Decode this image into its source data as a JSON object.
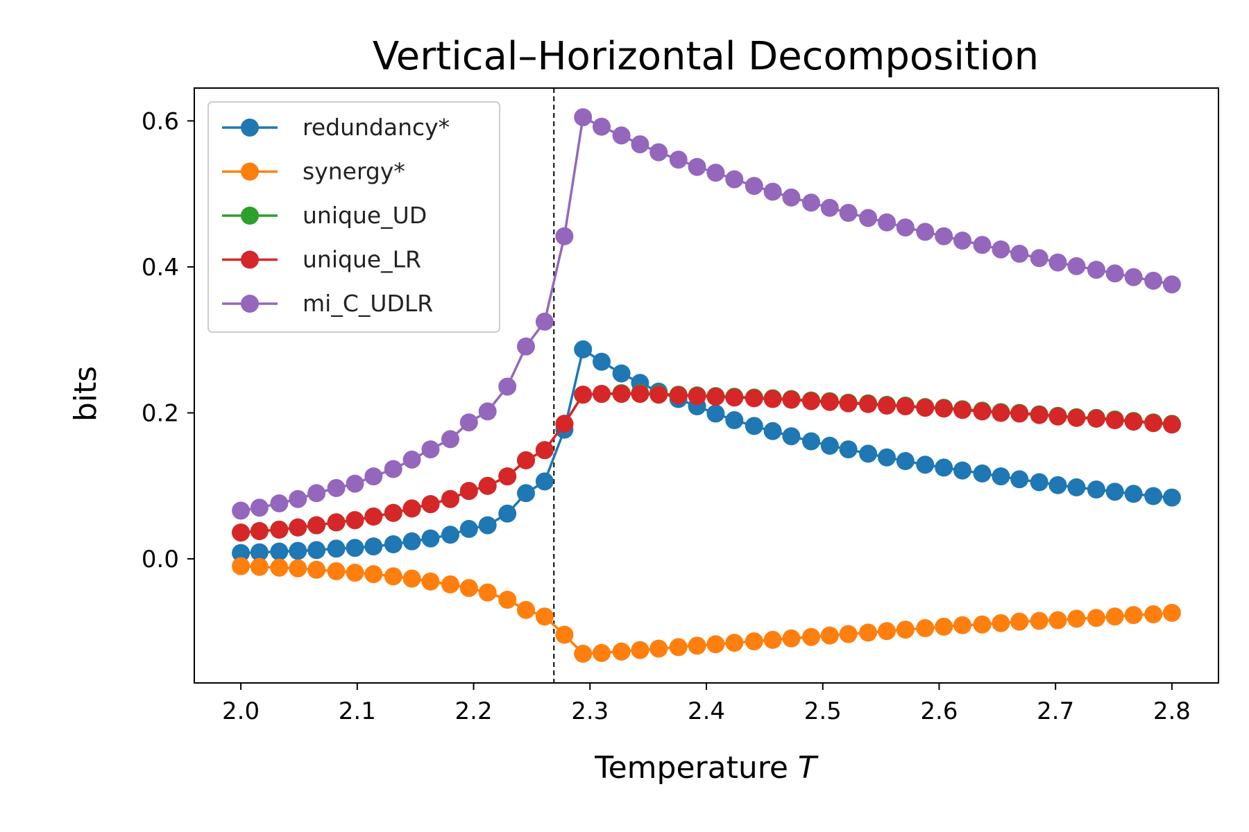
{
  "chart_data": {
    "type": "line",
    "title": "Vertical–Horizontal Decomposition",
    "xlabel_main": "Temperature ",
    "xlabel_var": "T",
    "ylabel": "bits",
    "xlim": [
      1.96,
      2.84
    ],
    "ylim": [
      -0.17,
      0.645
    ],
    "xticks": [
      2.0,
      2.1,
      2.2,
      2.3,
      2.4,
      2.5,
      2.6,
      2.7,
      2.8
    ],
    "xtick_labels": [
      "2.0",
      "2.1",
      "2.2",
      "2.3",
      "2.4",
      "2.5",
      "2.6",
      "2.7",
      "2.8"
    ],
    "yticks": [
      0.0,
      0.2,
      0.4,
      0.6
    ],
    "ytick_labels": [
      "0.0",
      "0.2",
      "0.4",
      "0.6"
    ],
    "critical_temperature": 2.269,
    "legend_position": "upper-left",
    "x": [
      2.0,
      2.016,
      2.033,
      2.049,
      2.065,
      2.082,
      2.098,
      2.114,
      2.131,
      2.147,
      2.163,
      2.18,
      2.196,
      2.212,
      2.229,
      2.245,
      2.261,
      2.278,
      2.294,
      2.31,
      2.327,
      2.343,
      2.359,
      2.376,
      2.392,
      2.408,
      2.424,
      2.441,
      2.457,
      2.473,
      2.49,
      2.506,
      2.522,
      2.539,
      2.555,
      2.571,
      2.588,
      2.604,
      2.62,
      2.637,
      2.653,
      2.669,
      2.686,
      2.702,
      2.718,
      2.735,
      2.751,
      2.767,
      2.784,
      2.8
    ],
    "series": [
      {
        "name": "redundancy*",
        "color": "#1f77b4",
        "values": [
          0.008,
          0.009,
          0.01,
          0.011,
          0.012,
          0.014,
          0.015,
          0.017,
          0.02,
          0.024,
          0.028,
          0.033,
          0.041,
          0.046,
          0.062,
          0.09,
          0.106,
          0.177,
          0.287,
          0.27,
          0.254,
          0.241,
          0.229,
          0.219,
          0.209,
          0.199,
          0.19,
          0.182,
          0.175,
          0.168,
          0.161,
          0.155,
          0.15,
          0.144,
          0.139,
          0.134,
          0.129,
          0.125,
          0.121,
          0.117,
          0.113,
          0.109,
          0.105,
          0.101,
          0.098,
          0.095,
          0.092,
          0.089,
          0.086,
          0.084
        ]
      },
      {
        "name": "synergy*",
        "color": "#ff7f0e",
        "values": [
          -0.01,
          -0.011,
          -0.012,
          -0.013,
          -0.015,
          -0.017,
          -0.019,
          -0.021,
          -0.024,
          -0.027,
          -0.031,
          -0.035,
          -0.04,
          -0.046,
          -0.056,
          -0.07,
          -0.079,
          -0.104,
          -0.13,
          -0.129,
          -0.127,
          -0.125,
          -0.123,
          -0.121,
          -0.119,
          -0.117,
          -0.115,
          -0.113,
          -0.111,
          -0.109,
          -0.107,
          -0.105,
          -0.103,
          -0.101,
          -0.099,
          -0.097,
          -0.095,
          -0.093,
          -0.091,
          -0.09,
          -0.088,
          -0.086,
          -0.085,
          -0.084,
          -0.082,
          -0.081,
          -0.079,
          -0.077,
          -0.076,
          -0.074
        ]
      },
      {
        "name": "unique_UD",
        "color": "#2ca02c",
        "values": [
          0.036,
          0.038,
          0.04,
          0.043,
          0.046,
          0.05,
          0.053,
          0.058,
          0.063,
          0.069,
          0.075,
          0.082,
          0.093,
          0.1,
          0.113,
          0.135,
          0.149,
          0.185,
          0.225,
          0.226,
          0.227,
          0.227,
          0.226,
          0.225,
          0.224,
          0.223,
          0.222,
          0.221,
          0.22,
          0.219,
          0.217,
          0.216,
          0.214,
          0.213,
          0.211,
          0.21,
          0.208,
          0.207,
          0.205,
          0.203,
          0.201,
          0.2,
          0.198,
          0.196,
          0.194,
          0.193,
          0.191,
          0.189,
          0.187,
          0.185
        ]
      },
      {
        "name": "unique_LR",
        "color": "#d62728",
        "values": [
          0.036,
          0.038,
          0.04,
          0.043,
          0.046,
          0.05,
          0.053,
          0.058,
          0.063,
          0.069,
          0.075,
          0.082,
          0.093,
          0.1,
          0.113,
          0.135,
          0.149,
          0.185,
          0.225,
          0.226,
          0.226,
          0.226,
          0.225,
          0.224,
          0.223,
          0.222,
          0.221,
          0.22,
          0.219,
          0.218,
          0.216,
          0.215,
          0.213,
          0.212,
          0.21,
          0.209,
          0.207,
          0.206,
          0.204,
          0.202,
          0.2,
          0.199,
          0.197,
          0.195,
          0.193,
          0.192,
          0.19,
          0.188,
          0.186,
          0.184
        ]
      },
      {
        "name": "mi_C_UDLR",
        "color": "#9467bd",
        "values": [
          0.066,
          0.07,
          0.076,
          0.082,
          0.09,
          0.097,
          0.103,
          0.113,
          0.123,
          0.136,
          0.15,
          0.164,
          0.187,
          0.202,
          0.236,
          0.291,
          0.325,
          0.442,
          0.605,
          0.592,
          0.58,
          0.568,
          0.557,
          0.547,
          0.537,
          0.529,
          0.52,
          0.511,
          0.503,
          0.495,
          0.488,
          0.481,
          0.474,
          0.467,
          0.461,
          0.454,
          0.448,
          0.442,
          0.436,
          0.43,
          0.424,
          0.418,
          0.412,
          0.406,
          0.401,
          0.396,
          0.391,
          0.386,
          0.381,
          0.376
        ]
      }
    ]
  }
}
